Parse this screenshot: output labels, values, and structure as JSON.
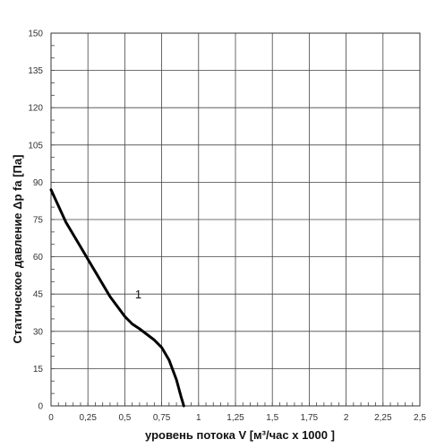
{
  "chart_data": {
    "type": "line",
    "xlabel": "уровень потока  V [м³/час x 1000 ]",
    "ylabel": "Статическое давление  Δp fa [Па]",
    "xlim": [
      0,
      2.5
    ],
    "ylim": [
      0,
      150
    ],
    "x_ticks": [
      0,
      0.25,
      0.5,
      0.75,
      1,
      1.25,
      1.5,
      1.75,
      2,
      2.25,
      2.5
    ],
    "x_tick_labels": [
      "0",
      "0,25",
      "0,5",
      "0,75",
      "1",
      "1,25",
      "1,5",
      "1,75",
      "2",
      "2,25",
      "2,5"
    ],
    "y_ticks": [
      0,
      15,
      30,
      45,
      60,
      75,
      90,
      105,
      120,
      135,
      150
    ],
    "y_tick_labels": [
      "0",
      "15",
      "30",
      "45",
      "60",
      "75",
      "90",
      "105",
      "120",
      "135",
      "150"
    ],
    "grid": true,
    "series": [
      {
        "name": "1",
        "color": "#000000",
        "x": [
          0,
          0.1,
          0.2,
          0.25,
          0.3,
          0.4,
          0.5,
          0.55,
          0.6,
          0.7,
          0.75,
          0.8,
          0.85,
          0.88,
          0.9
        ],
        "y": [
          87,
          74,
          64,
          59,
          54,
          44,
          36,
          33,
          31,
          26.5,
          23.5,
          18.5,
          10.5,
          4,
          0
        ]
      }
    ]
  }
}
